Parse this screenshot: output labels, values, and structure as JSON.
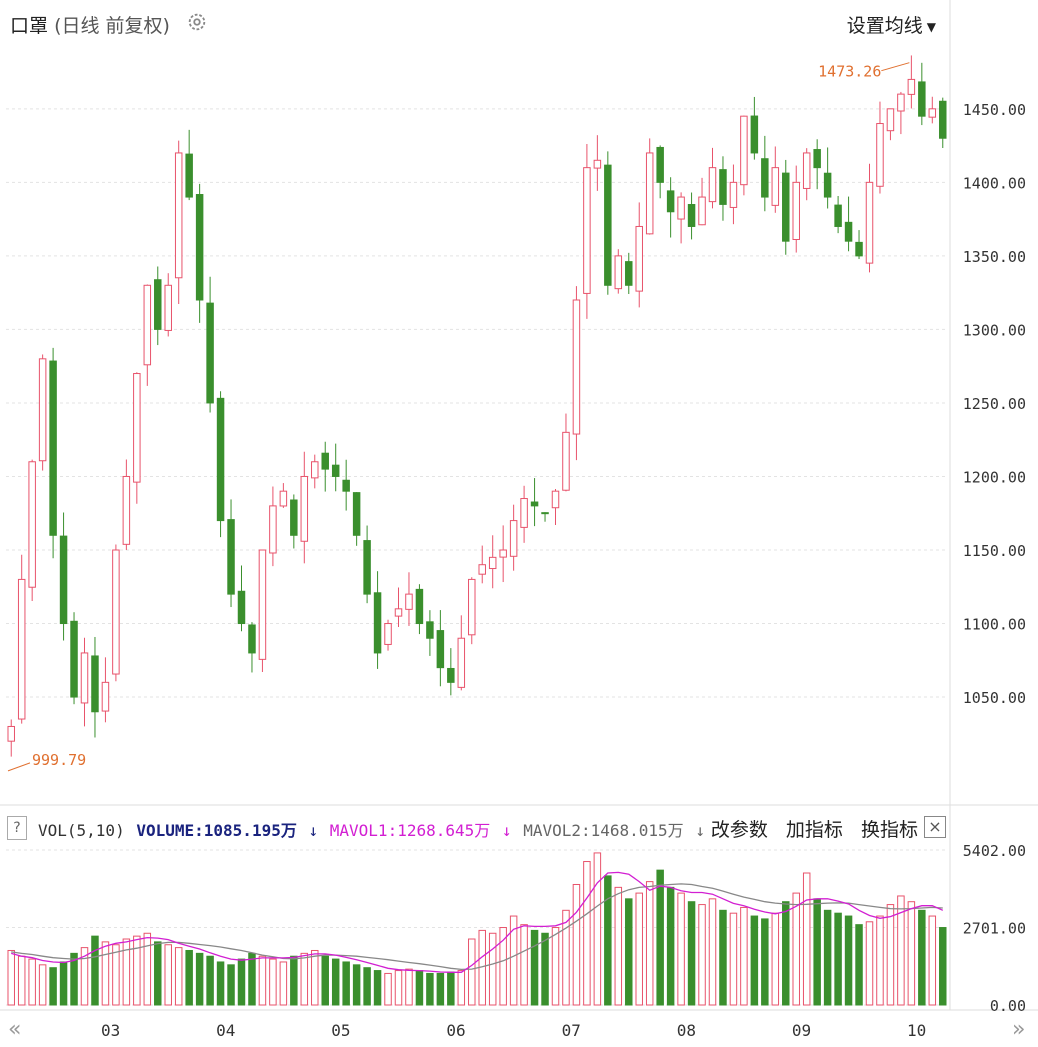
{
  "header": {
    "stock_name": "口罩",
    "mode": "(日线 前复权)",
    "ma_setting": "设置均线"
  },
  "volume_bar": {
    "help": "?",
    "indicator": "VOL(5,10)",
    "volume": "VOLUME:1085.195万",
    "volume_arrow": "↓",
    "mavol1": "MAVOL1:1268.645万",
    "mavol1_arrow": "↓",
    "mavol2": "MAVOL2:1468.015万",
    "mavol2_arrow": "↓",
    "btn_params": "改参数",
    "btn_add": "加指标",
    "btn_switch": "换指标",
    "close": "×"
  },
  "colors": {
    "up": "#e8536b",
    "down": "#3a8f2d",
    "mavol1": "#d21fd2",
    "mavol2": "#888888",
    "annotation": "#e07030",
    "grid": "#e3e3e3"
  },
  "chart_data": [
    {
      "type": "candlestick",
      "annotations": {
        "high": "1473.26",
        "low": "999.79"
      },
      "ylim": [
        980,
        1490
      ],
      "y_ticks": [
        "1450.00",
        "1400.00",
        "1350.00",
        "1300.00",
        "1250.00",
        "1200.00",
        "1150.00",
        "1100.00",
        "1050.00"
      ],
      "x_labels": [
        "03",
        "04",
        "05",
        "06",
        "07",
        "08",
        "09",
        "10"
      ],
      "close": [
        1030,
        1130,
        1210,
        1280,
        1160,
        1100,
        1050,
        1080,
        1040,
        1060,
        1150,
        1200,
        1270,
        1330,
        1300,
        1330,
        1420,
        1390,
        1320,
        1250,
        1170,
        1120,
        1100,
        1080,
        1150,
        1180,
        1190,
        1160,
        1200,
        1210,
        1205,
        1200,
        1190,
        1160,
        1120,
        1080,
        1100,
        1110,
        1120,
        1100,
        1090,
        1070,
        1060,
        1090,
        1130,
        1140,
        1145,
        1150,
        1170,
        1185,
        1180,
        1175,
        1190,
        1230,
        1320,
        1410,
        1415,
        1330,
        1350,
        1330,
        1370,
        1420,
        1400,
        1380,
        1390,
        1370,
        1390,
        1410,
        1385,
        1400,
        1445,
        1420,
        1390,
        1410,
        1360,
        1400,
        1420,
        1410,
        1390,
        1370,
        1360,
        1350,
        1400,
        1440,
        1450,
        1460,
        1470,
        1445,
        1450,
        1430
      ],
      "volume": [
        1900,
        1700,
        1600,
        1400,
        1300,
        1500,
        1800,
        2000,
        2400,
        2200,
        2100,
        2300,
        2400,
        2500,
        2200,
        2100,
        2000,
        1900,
        1800,
        1700,
        1500,
        1400,
        1600,
        1800,
        1700,
        1600,
        1500,
        1700,
        1800,
        1900,
        1700,
        1600,
        1500,
        1400,
        1300,
        1200,
        1100,
        1200,
        1250,
        1200,
        1100,
        1100,
        1150,
        1200,
        2300,
        2600,
        2500,
        2700,
        3100,
        2800,
        2600,
        2500,
        2700,
        3300,
        4200,
        5000,
        5300,
        4500,
        4100,
        3700,
        3900,
        4300,
        4700,
        4100,
        3900,
        3600,
        3500,
        3700,
        3300,
        3200,
        3400,
        3100,
        3000,
        3200,
        3600,
        3900,
        4600,
        3700,
        3300,
        3200,
        3100,
        2800,
        2900,
        3100,
        3500,
        3800,
        3600,
        3300,
        3100,
        2700
      ],
      "mavol1": [
        1800,
        1700,
        1650,
        1550,
        1500,
        1480,
        1550,
        1700,
        1900,
        2050,
        2150,
        2200,
        2280,
        2350,
        2330,
        2280,
        2150,
        2050,
        1950,
        1820,
        1700,
        1600,
        1560,
        1600,
        1640,
        1640,
        1640,
        1660,
        1720,
        1780,
        1780,
        1740,
        1660,
        1580,
        1480,
        1380,
        1280,
        1230,
        1210,
        1200,
        1180,
        1150,
        1140,
        1140,
        1380,
        1680,
        1950,
        2260,
        2640,
        2760,
        2740,
        2740,
        2760,
        2880,
        3230,
        3730,
        4260,
        4600,
        4620,
        4560,
        4300,
        4000,
        4140,
        4100,
        3980,
        3920,
        3920,
        3860,
        3700,
        3540,
        3460,
        3340,
        3240,
        3180,
        3260,
        3440,
        3660,
        3700,
        3700,
        3620,
        3520,
        3300,
        3120,
        3020,
        3080,
        3220,
        3360,
        3460,
        3460,
        3300
      ],
      "mavol2": [
        1850,
        1800,
        1760,
        1700,
        1650,
        1620,
        1600,
        1620,
        1680,
        1760,
        1840,
        1920,
        1980,
        2060,
        2140,
        2180,
        2180,
        2150,
        2110,
        2070,
        2020,
        1960,
        1900,
        1820,
        1740,
        1680,
        1620,
        1610,
        1640,
        1700,
        1740,
        1740,
        1720,
        1700,
        1660,
        1620,
        1580,
        1530,
        1480,
        1440,
        1390,
        1340,
        1280,
        1240,
        1250,
        1330,
        1430,
        1540,
        1700,
        1880,
        2060,
        2250,
        2460,
        2680,
        2920,
        3180,
        3450,
        3700,
        3880,
        4020,
        4100,
        4130,
        4170,
        4200,
        4220,
        4200,
        4130,
        4070,
        3970,
        3860,
        3760,
        3680,
        3600,
        3550,
        3520,
        3500,
        3510,
        3530,
        3550,
        3560,
        3550,
        3500,
        3450,
        3400,
        3360,
        3350,
        3360,
        3380,
        3400,
        3380
      ]
    },
    {
      "type": "bar",
      "y_ticks": [
        "5402.00",
        "2701.00",
        "0.00"
      ],
      "ylim": [
        0,
        5402
      ]
    }
  ]
}
